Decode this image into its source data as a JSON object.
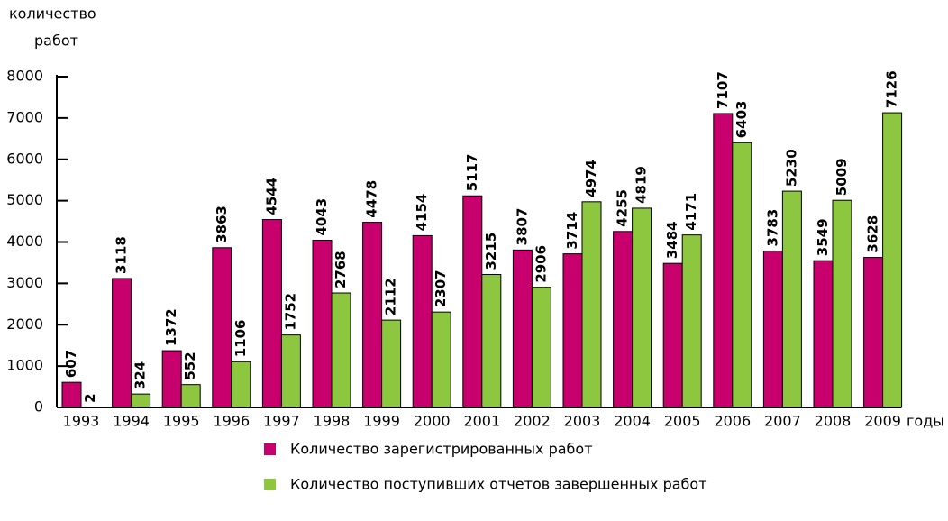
{
  "chart_data": {
    "type": "bar",
    "ylabel": [
      "количество",
      "работ"
    ],
    "xlabel": "годы",
    "categories": [
      "1993",
      "1994",
      "1995",
      "1996",
      "1997",
      "1998",
      "1999",
      "2000",
      "2001",
      "2002",
      "2003",
      "2004",
      "2005",
      "2006",
      "2007",
      "2008",
      "2009"
    ],
    "series": [
      {
        "name": "Количество зарегистрированных работ",
        "color": "#c8006e",
        "values": [
          607,
          3118,
          1372,
          3863,
          4544,
          4043,
          4478,
          4154,
          5117,
          3807,
          3714,
          4255,
          3484,
          7107,
          3783,
          3549,
          3628
        ]
      },
      {
        "name": "Количество поступивших отчетов завершенных работ",
        "color": "#8dc63f",
        "values": [
          2,
          324,
          552,
          1106,
          1752,
          2768,
          2112,
          2307,
          3215,
          2906,
          4974,
          4819,
          4171,
          6403,
          5230,
          5009,
          7126
        ]
      }
    ],
    "ylim": [
      0,
      8000
    ],
    "yticks": [
      0,
      1000,
      2000,
      3000,
      4000,
      5000,
      6000,
      7000,
      8000
    ]
  }
}
